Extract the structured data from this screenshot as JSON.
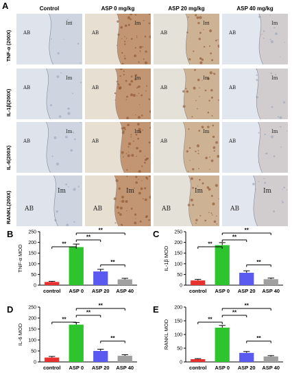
{
  "figure": {
    "panel_A_letter": "A",
    "columns": [
      "Control",
      "ASP 0 mg/kg",
      "ASP 20 mg/kg",
      "ASP 40 mg/kg"
    ],
    "rows": [
      "TNF-α (200X)",
      "IL-1β(200X)",
      "IL-6(200X)",
      "RANKL(200X)"
    ],
    "region_labels": {
      "left": "AB",
      "right": "Im"
    }
  },
  "colors": {
    "control": "#e8312f",
    "asp0": "#2ec42e",
    "asp20": "#5a5af0",
    "asp40": "#a0a0a0"
  },
  "chart_data": [
    {
      "letter": "B",
      "type": "bar",
      "categories": [
        "control",
        "ASP 0",
        "ASP 20",
        "ASP 40"
      ],
      "values": [
        15,
        178,
        64,
        27
      ],
      "errors": [
        3,
        14,
        10,
        5
      ],
      "ylabel": "TNF-α MOD",
      "ylim": [
        0,
        250
      ],
      "yticks": [
        0,
        50,
        100,
        150,
        200,
        250
      ],
      "significance": [
        {
          "from": 0,
          "to": 1,
          "label": "**"
        },
        {
          "from": 1,
          "to": 2,
          "label": "**"
        },
        {
          "from": 1,
          "to": 3,
          "label": "**"
        },
        {
          "from": 2,
          "to": 3,
          "label": "**"
        }
      ]
    },
    {
      "letter": "C",
      "type": "bar",
      "categories": [
        "control",
        "ASP 0",
        "ASP 20",
        "ASP 40"
      ],
      "values": [
        22,
        187,
        58,
        28
      ],
      "errors": [
        5,
        12,
        9,
        5
      ],
      "ylabel": "IL-1β MOD",
      "ylim": [
        0,
        250
      ],
      "yticks": [
        0,
        50,
        100,
        150,
        200,
        250
      ],
      "significance": [
        {
          "from": 0,
          "to": 1,
          "label": "**"
        },
        {
          "from": 1,
          "to": 2,
          "label": "**"
        },
        {
          "from": 1,
          "to": 3,
          "label": "**"
        },
        {
          "from": 2,
          "to": 3,
          "label": "**"
        }
      ]
    },
    {
      "letter": "D",
      "type": "bar",
      "categories": [
        "control",
        "ASP 0",
        "ASP 20",
        "ASP 40"
      ],
      "values": [
        20,
        170,
        50,
        28
      ],
      "errors": [
        5,
        10,
        8,
        5
      ],
      "ylabel": "IL-6 MOD",
      "ylim": [
        0,
        250
      ],
      "yticks": [
        0,
        50,
        100,
        150,
        200,
        250
      ],
      "significance": [
        {
          "from": 0,
          "to": 1,
          "label": "**"
        },
        {
          "from": 1,
          "to": 2,
          "label": "**"
        },
        {
          "from": 1,
          "to": 3,
          "label": "**"
        },
        {
          "from": 2,
          "to": 3,
          "label": "**"
        }
      ]
    },
    {
      "letter": "E",
      "type": "bar",
      "categories": [
        "control",
        "ASP 0",
        "ASP 20",
        "ASP 40"
      ],
      "values": [
        10,
        125,
        33,
        20
      ],
      "errors": [
        2,
        8,
        5,
        3
      ],
      "ylabel": "RANKL MOD",
      "ylim": [
        0,
        200
      ],
      "yticks": [
        0,
        50,
        100,
        150,
        200
      ],
      "significance": [
        {
          "from": 0,
          "to": 1,
          "label": "**"
        },
        {
          "from": 1,
          "to": 2,
          "label": "**"
        },
        {
          "from": 1,
          "to": 3,
          "label": "**"
        },
        {
          "from": 2,
          "to": 3,
          "label": "**"
        }
      ]
    }
  ]
}
